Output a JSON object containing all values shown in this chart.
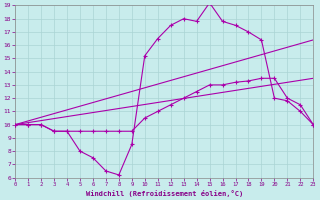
{
  "xlabel": "Windchill (Refroidissement éolien,°C)",
  "bg_color": "#c8ecec",
  "line_color": "#aa00aa",
  "xlim": [
    0,
    23
  ],
  "ylim": [
    6,
    19
  ],
  "xticks": [
    0,
    1,
    2,
    3,
    4,
    5,
    6,
    7,
    8,
    9,
    10,
    11,
    12,
    13,
    14,
    15,
    16,
    17,
    18,
    19,
    20,
    21,
    22,
    23
  ],
  "yticks": [
    6,
    7,
    8,
    9,
    10,
    11,
    12,
    13,
    14,
    15,
    16,
    17,
    18,
    19
  ],
  "line1_x": [
    0,
    1,
    2,
    3,
    4,
    5,
    6,
    7,
    8,
    9,
    10,
    11,
    12,
    13,
    14,
    15,
    16,
    17,
    18,
    19,
    20,
    21,
    22,
    23
  ],
  "line1_y": [
    10,
    10,
    10,
    9.5,
    9.5,
    8.0,
    7.5,
    6.5,
    6.2,
    8.5,
    15.2,
    16.5,
    17.5,
    18.0,
    17.8,
    19.2,
    17.8,
    17.5,
    17.0,
    16.4,
    12.0,
    11.8,
    11.0,
    10.0
  ],
  "line2_x": [
    0,
    1,
    2,
    3,
    4,
    5,
    6,
    7,
    8,
    9,
    10,
    11,
    12,
    13,
    14,
    15,
    16,
    17,
    18,
    19,
    20,
    21,
    22,
    23
  ],
  "line2_y": [
    10,
    10,
    10,
    9.5,
    9.5,
    9.5,
    9.5,
    9.5,
    9.5,
    9.5,
    10.5,
    11.0,
    11.5,
    12.0,
    12.5,
    13.0,
    13.0,
    13.2,
    13.3,
    13.5,
    13.5,
    12.0,
    11.5,
    10.0
  ],
  "line3_x": [
    0,
    23
  ],
  "line3_y": [
    10,
    16.4
  ],
  "line4_x": [
    0,
    23
  ],
  "line4_y": [
    10,
    13.5
  ]
}
